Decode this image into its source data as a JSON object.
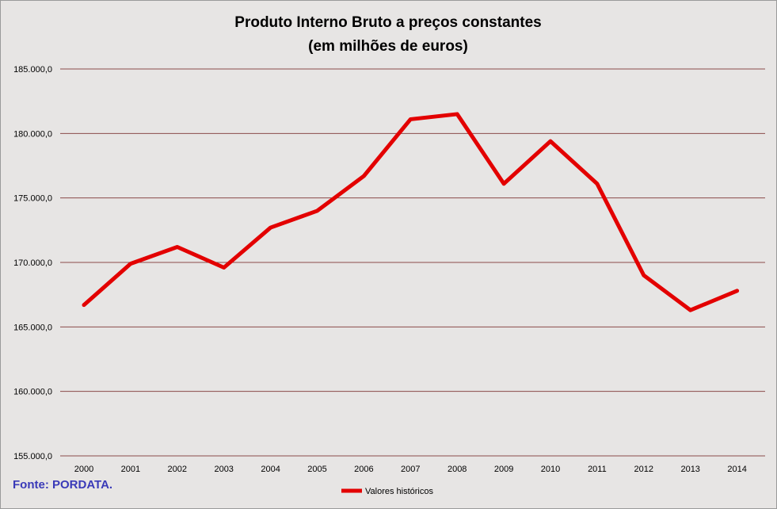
{
  "chart_data": {
    "type": "line",
    "title": "Produto Interno Bruto a preços constantes",
    "subtitle": "(em milhões de euros)",
    "categories": [
      "2000",
      "2001",
      "2002",
      "2003",
      "2004",
      "2005",
      "2006",
      "2007",
      "2008",
      "2009",
      "2010",
      "2011",
      "2012",
      "2013",
      "2014"
    ],
    "series": [
      {
        "name": "Valores históricos",
        "color": "#e30000",
        "values": [
          166700,
          169900,
          171200,
          169600,
          172700,
          174000,
          176700,
          181100,
          181500,
          176100,
          179400,
          176100,
          169000,
          166300,
          167800
        ]
      }
    ],
    "ylim": [
      155000,
      185000
    ],
    "yticks": [
      155000,
      160000,
      165000,
      170000,
      175000,
      180000,
      185000
    ],
    "ytick_labels": [
      "155.000,0",
      "160.000,0",
      "165.000,0",
      "170.000,0",
      "175.000,0",
      "180.000,0",
      "185.000,0"
    ],
    "grid": "horizontal",
    "gridline_color": "#8b4a4a",
    "legend_position": "bottom"
  },
  "source_note": "Fonte: PORDATA."
}
